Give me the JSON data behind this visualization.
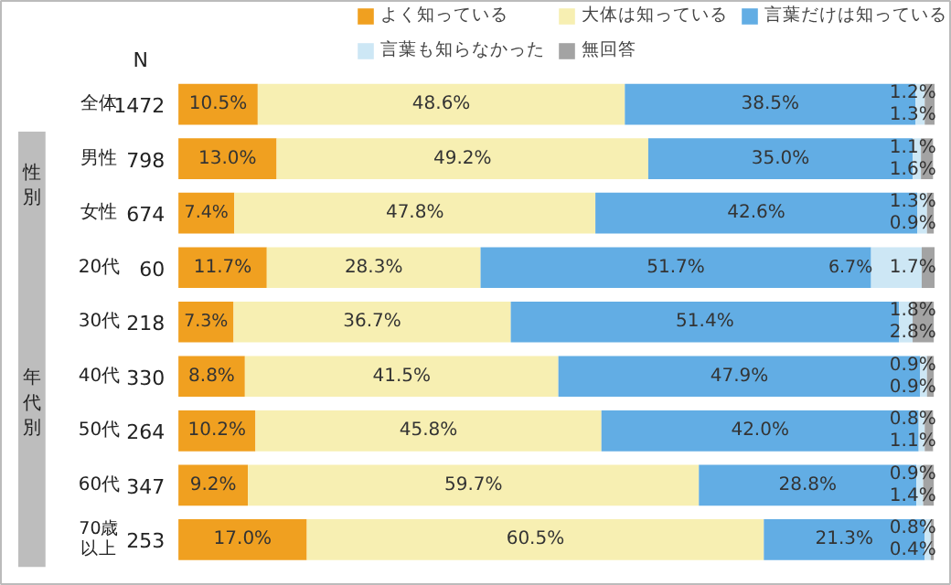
{
  "chart_data": {
    "type": "bar",
    "orientation": "horizontal",
    "stacked": true,
    "legend": "top right",
    "categories": [
      "全体",
      "男性",
      "女性",
      "20代",
      "30代",
      "40代",
      "50代",
      "60代",
      "70歳以上"
    ],
    "series": [
      {
        "name": "よく知っている",
        "color": "#f0a020",
        "values": [
          10.5,
          13.0,
          7.4,
          11.7,
          7.3,
          8.8,
          10.2,
          9.2,
          17.0
        ],
        "value_labels": [
          "10.5%",
          "13.0%",
          "7.4%",
          "11.7%",
          "7.3%",
          "8.8%",
          "10.2%",
          "9.2%",
          "17.0%"
        ]
      },
      {
        "name": "大体は知っている",
        "color": "#f7efb2",
        "values": [
          48.6,
          49.2,
          47.8,
          28.3,
          36.7,
          41.5,
          45.8,
          59.7,
          60.5
        ],
        "value_labels": [
          "48.6%",
          "49.2%",
          "47.8%",
          "28.3%",
          "36.7%",
          "41.5%",
          "45.8%",
          "59.7%",
          "60.5%"
        ]
      },
      {
        "name": "言葉だけは知っている",
        "color": "#62ade4",
        "values": [
          38.5,
          35.0,
          42.6,
          51.7,
          51.4,
          47.9,
          42.0,
          28.8,
          21.3
        ],
        "value_labels": [
          "38.5%",
          "35.0%",
          "42.6%",
          "51.7%",
          "51.4%",
          "47.9%",
          "42.0%",
          "28.8%",
          "21.3%"
        ]
      },
      {
        "name": "言葉も知らなかった",
        "color": "#cde7f5",
        "values": [
          1.2,
          1.1,
          1.3,
          6.7,
          1.8,
          0.9,
          0.8,
          0.9,
          0.8
        ],
        "value_labels": [
          "1.2%",
          "1.1%",
          "1.3%",
          "6.7%",
          "1.8%",
          "0.9%",
          "0.8%",
          "0.9%",
          "0.8%"
        ]
      },
      {
        "name": "無回答",
        "color": "#a3a3a3",
        "values": [
          1.3,
          1.6,
          0.9,
          1.7,
          2.8,
          0.9,
          1.1,
          1.4,
          0.4
        ],
        "value_labels": [
          "1.3%",
          "1.6%",
          "0.9%",
          "1.7%",
          "2.8%",
          "0.9%",
          "1.1%",
          "1.4%",
          "0.4%"
        ]
      }
    ],
    "annotations": [
      "N",
      "1472",
      "798",
      "674",
      "60",
      "218",
      "330",
      "264",
      "347",
      "253",
      "性別",
      "年代別"
    ]
  }
}
